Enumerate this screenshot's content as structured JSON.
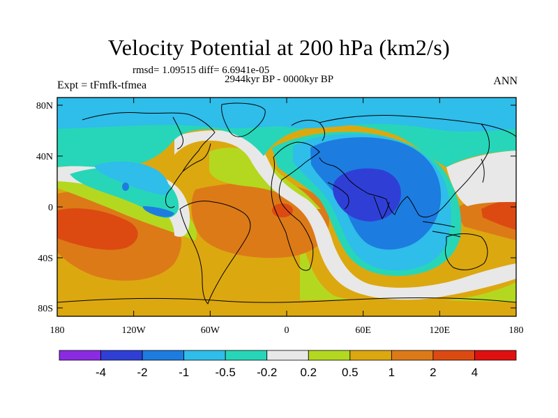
{
  "title": "Velocity Potential at 200 hPa (km2/s)",
  "stats": "rmsd= 1.09515 diff= 6.6941e-05",
  "period": "2944kyr BP - 0000kyr BP",
  "expt": "Expt = tFmfk-tfmea",
  "season": "ANN",
  "y_ticks": [
    "80N",
    "40N",
    "0",
    "40S",
    "80S"
  ],
  "x_ticks": [
    "180",
    "120W",
    "60W",
    "0",
    "60E",
    "120E",
    "180"
  ],
  "colorbar": {
    "labels": [
      "-4",
      "-2",
      "-1",
      "-0.5",
      "-0.2",
      "0.2",
      "0.5",
      "1",
      "2",
      "4"
    ],
    "colors": [
      "#8a2be2",
      "#2f3fd6",
      "#1d7ce0",
      "#2fbdea",
      "#27d6b8",
      "#e8e8e8",
      "#b4d820",
      "#dca810",
      "#dc7a18",
      "#dc4a12",
      "#e01010"
    ]
  },
  "colors": {
    "background_field": "#dca810",
    "coast": "#000000"
  }
}
